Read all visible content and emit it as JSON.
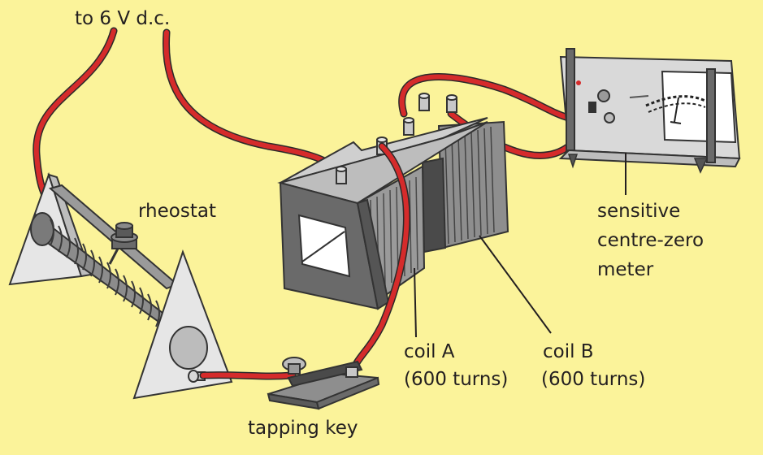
{
  "labels": {
    "supply": "to 6 V d.c.",
    "rheostat": "rheostat",
    "meter_line1": "sensitive",
    "meter_line2": "centre-zero",
    "meter_line3": "meter",
    "coil_a_line1": "coil A",
    "coil_a_line2": "(600 turns)",
    "coil_b_line1": "coil B",
    "coil_b_line2": "(600 turns)",
    "key": "tapping key"
  },
  "colors": {
    "background": "#fbf39a",
    "wire": "#d52b2b",
    "metal_light": "#d6d6d6",
    "metal_dark": "#5a5a5a"
  }
}
